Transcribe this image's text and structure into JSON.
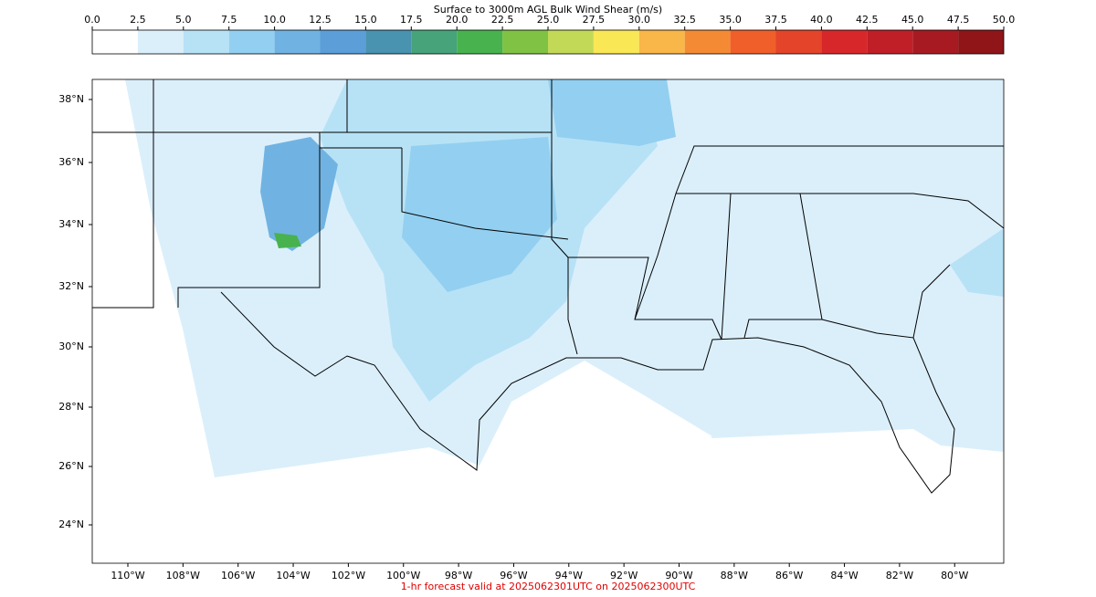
{
  "colorbar": {
    "title": "Surface to 3000m AGL Bulk Wind Shear (m/s)",
    "ticks": [
      {
        "value": 0,
        "label": "0.0"
      },
      2.5,
      {
        "value": 5,
        "label": "5.0"
      },
      7.5,
      {
        "value": 10,
        "label": "10.0"
      },
      12.5,
      {
        "value": 15,
        "label": "15.0"
      },
      17.5,
      {
        "value": 20,
        "label": "20.0"
      },
      22.5,
      {
        "value": 25,
        "label": "25.0"
      },
      27.5,
      {
        "value": 30,
        "label": "30.0"
      },
      32.5,
      {
        "value": 35,
        "label": "35.0"
      },
      37.5,
      {
        "value": 40,
        "label": "40.0"
      },
      42.5,
      {
        "value": 45,
        "label": "45.0"
      },
      47.5,
      {
        "value": 50,
        "label": "50.0"
      }
    ],
    "colors": [
      "#ffffff",
      "#dbeffb",
      "#b7e2f6",
      "#93cff0",
      "#70b3e2",
      "#5b9ed8",
      "#4993b0",
      "#46a37a",
      "#48b24f",
      "#7fc244",
      "#c2d957",
      "#f9e755",
      "#f9b649",
      "#f58a34",
      "#f05f2a",
      "#e4442a",
      "#d8272a",
      "#c01f27",
      "#a81a22",
      "#8f1519"
    ]
  },
  "map": {
    "lat_labels": [
      "38°N",
      "36°N",
      "34°N",
      "32°N",
      "30°N",
      "28°N",
      "26°N",
      "24°N"
    ],
    "lon_labels": [
      "110°W",
      "108°W",
      "106°W",
      "104°W",
      "102°W",
      "100°W",
      "98°W",
      "96°W",
      "94°W",
      "92°W",
      "90°W",
      "88°W",
      "86°W",
      "84°W",
      "82°W",
      "80°W"
    ]
  },
  "footer": "1-hr forecast valid at 2025062301UTC on 2025062300UTC"
}
